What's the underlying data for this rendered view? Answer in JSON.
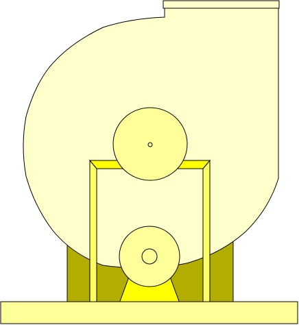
{
  "colors": {
    "background": "#ffffff",
    "housing_fill": "#ffffcc",
    "pedestal_fill": "#b3ad00",
    "frame_fill": "#ffff66",
    "frame_bevel": "#ffff00",
    "pulley_fill": "#ffff99",
    "base_fill": "#ffff99",
    "motor_mount_fill": "#ffff00",
    "outline": "#000000"
  },
  "components": [
    "fan-housing",
    "outlet-flange",
    "fan-pulley",
    "support-frame",
    "motor-pulley",
    "motor-mount",
    "pedestal",
    "base-plate"
  ]
}
